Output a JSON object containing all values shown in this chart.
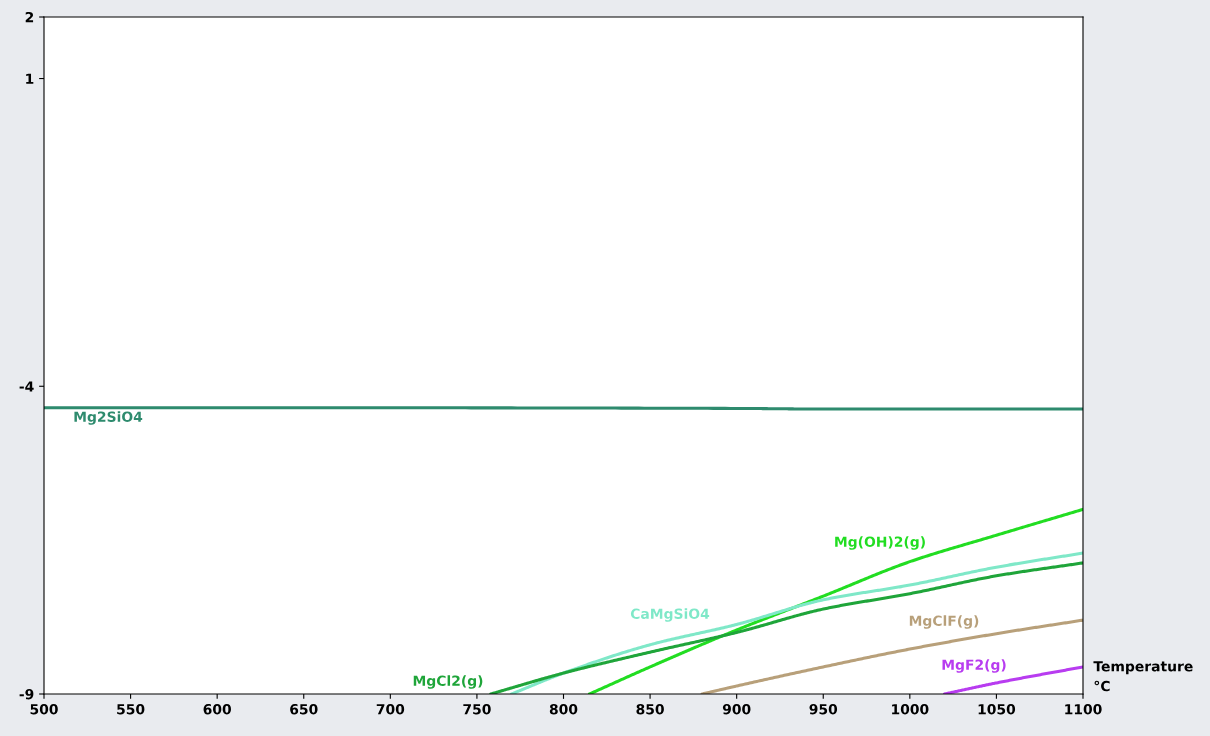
{
  "chart_data": {
    "type": "line",
    "xlabel": "Temperature\n°C",
    "xlim": [
      500,
      1100
    ],
    "xticks": [
      500,
      550,
      600,
      650,
      700,
      750,
      800,
      850,
      900,
      950,
      1000,
      1050,
      1100
    ],
    "ylim": [
      -9,
      2
    ],
    "yticks": [
      2,
      1,
      -4,
      -9
    ],
    "grid": false,
    "legend": false,
    "series": [
      {
        "name": "Mg2SiO4",
        "color": "#2e8b6e",
        "x": [
          500,
          700,
          900,
          950,
          1100
        ],
        "values": [
          -4.35,
          -4.35,
          -4.36,
          -4.37,
          -4.37
        ]
      },
      {
        "name": "Mg(OH)2(g)",
        "color": "#22dd22",
        "x": [
          815,
          850,
          900,
          950,
          1000,
          1050,
          1100
        ],
        "values": [
          -9,
          -8.56,
          -7.96,
          -7.41,
          -6.85,
          -6.42,
          -6.0
        ]
      },
      {
        "name": "CaMgSiO4",
        "color": "#7fe8c8",
        "x": [
          770,
          800,
          850,
          900,
          950,
          1000,
          1050,
          1100
        ],
        "values": [
          -9,
          -8.66,
          -8.2,
          -7.87,
          -7.47,
          -7.23,
          -6.94,
          -6.71
        ]
      },
      {
        "name": "MgCl2(g)",
        "color": "#1fa53a",
        "x": [
          758,
          800,
          850,
          900,
          950,
          1000,
          1050,
          1100
        ],
        "values": [
          -9,
          -8.66,
          -8.32,
          -8.0,
          -7.62,
          -7.37,
          -7.08,
          -6.87
        ]
      },
      {
        "name": "MgClF(g)",
        "color": "#b8a07a",
        "x": [
          880,
          900,
          950,
          1000,
          1050,
          1100
        ],
        "values": [
          -9,
          -8.87,
          -8.56,
          -8.27,
          -8.02,
          -7.8
        ]
      },
      {
        "name": "MgF2(g)",
        "color": "#b83cf0",
        "x": [
          1020,
          1050,
          1100
        ],
        "values": [
          -9,
          -8.82,
          -8.56
        ]
      }
    ]
  }
}
